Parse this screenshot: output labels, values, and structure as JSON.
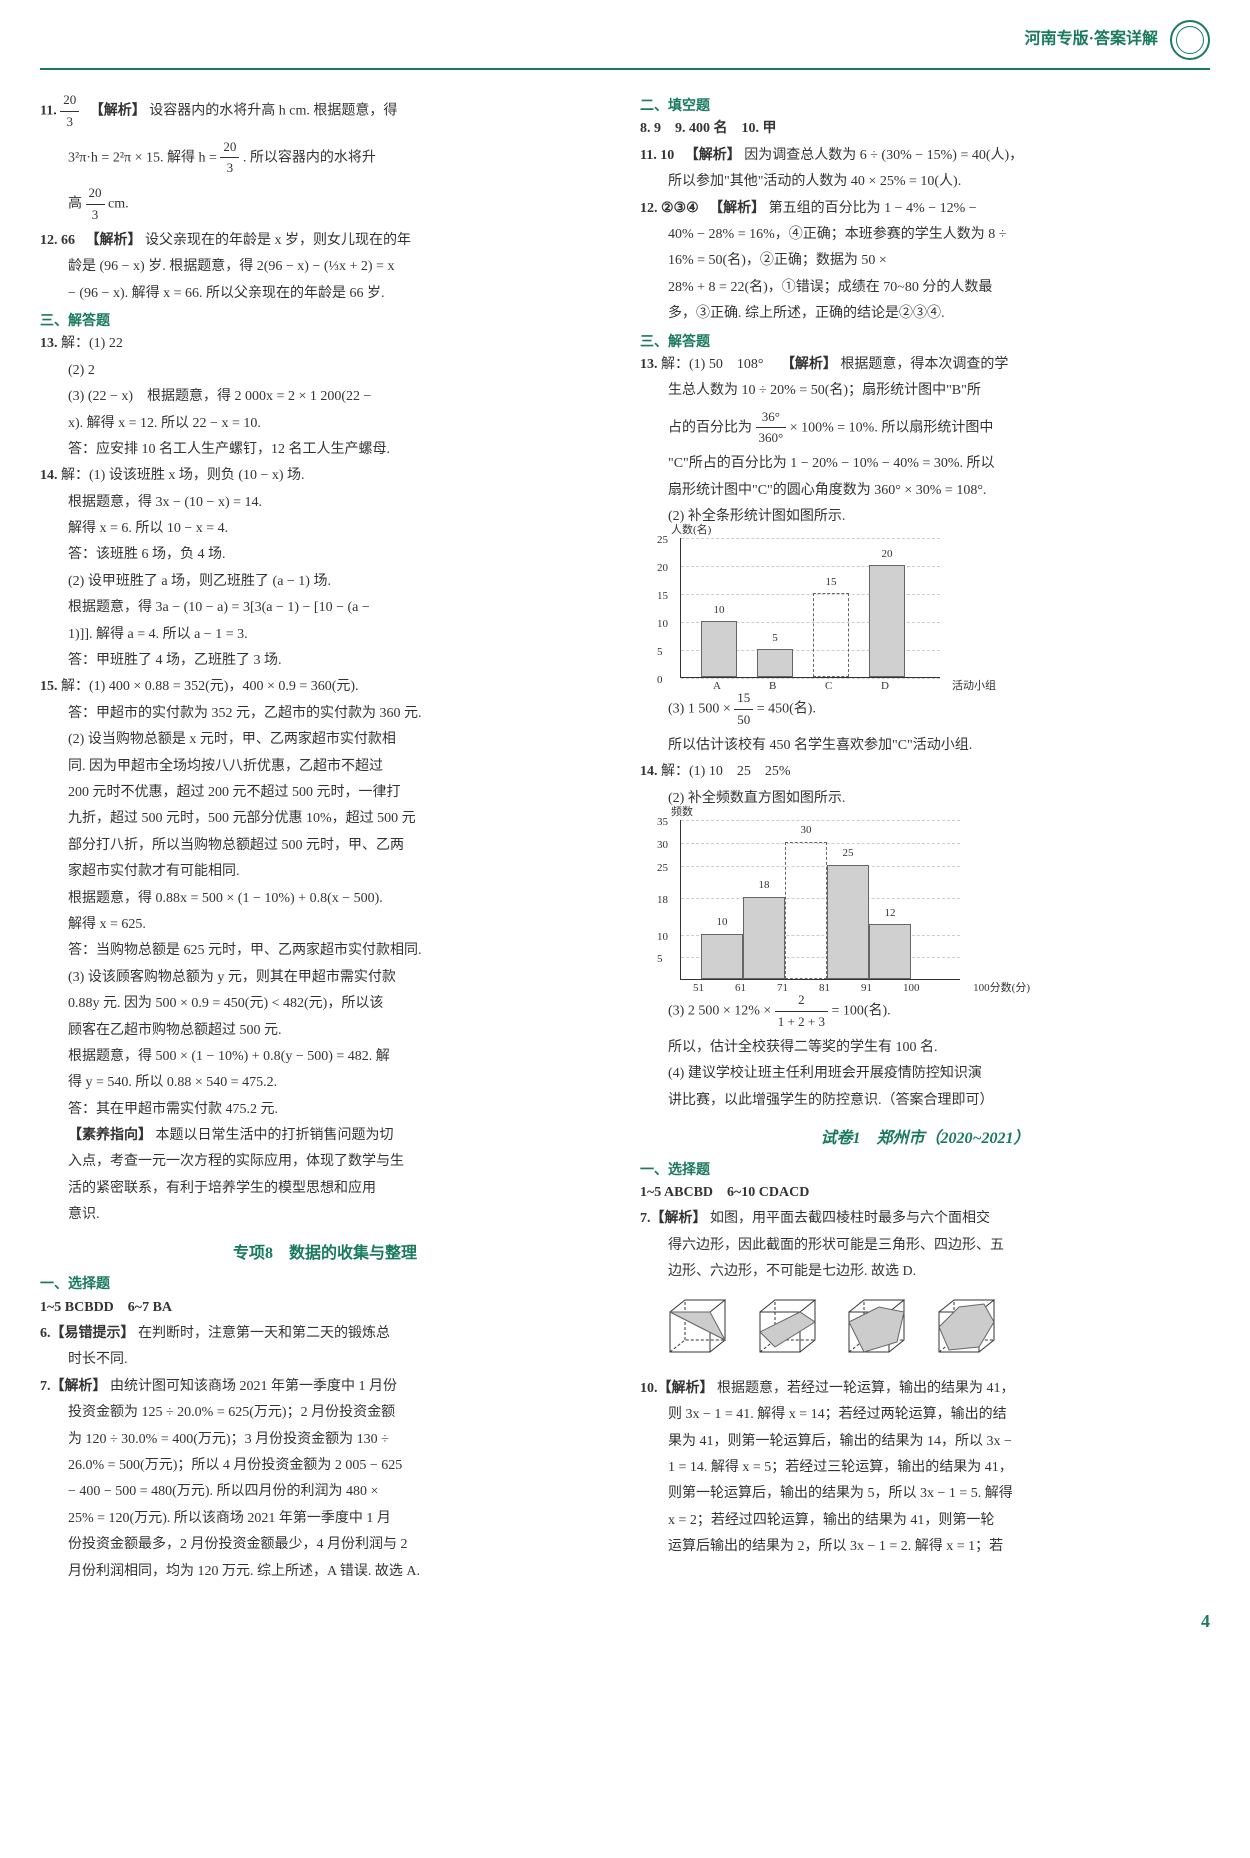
{
  "header": {
    "text": "河南专版·答案详解"
  },
  "left": {
    "q11_num": "11.",
    "q11_ans": "20/3",
    "q11_tag": "【解析】",
    "q11_l1": "设容器内的水将升高 h cm. 根据题意，得",
    "q11_l2": "3²π·h = 2²π × 15. 解得 h = ",
    "q11_l2b": ". 所以容器内的水将升",
    "q11_l3a": "高",
    "q11_l3b": " cm.",
    "q12_num": "12. 66",
    "q12_tag": "【解析】",
    "q12_l1": "设父亲现在的年龄是 x 岁，则女儿现在的年",
    "q12_l2": "龄是 (96 − x) 岁. 根据题意，得 2(96 − x) − (⅓x + 2) = x",
    "q12_l3": "− (96 − x). 解得 x = 66. 所以父亲现在的年龄是 66 岁.",
    "sec3": "三、解答题",
    "q13_num": "13.",
    "q13_l1": "解：(1) 22",
    "q13_l2": "(2) 2",
    "q13_l3": "(3) (22 − x)　根据题意，得 2 000x = 2 × 1 200(22 −",
    "q13_l4": "x). 解得 x = 12. 所以 22 − x = 10.",
    "q13_l5": "答：应安排 10 名工人生产螺钉，12 名工人生产螺母.",
    "q14_num": "14.",
    "q14_l1": "解：(1) 设该班胜 x 场，则负 (10 − x) 场.",
    "q14_l2": "根据题意，得 3x − (10 − x) = 14.",
    "q14_l3": "解得 x = 6. 所以 10 − x = 4.",
    "q14_l4": "答：该班胜 6 场，负 4 场.",
    "q14_l5": "(2) 设甲班胜了 a 场，则乙班胜了 (a − 1) 场.",
    "q14_l6": "根据题意，得 3a − (10 − a) = 3[3(a − 1) − [10 − (a −",
    "q14_l7": "1)]]. 解得 a = 4. 所以 a − 1 = 3.",
    "q14_l8": "答：甲班胜了 4 场，乙班胜了 3 场.",
    "q15_num": "15.",
    "q15_l1": "解：(1) 400 × 0.88 = 352(元)，400 × 0.9 = 360(元).",
    "q15_l2": "答：甲超市的实付款为 352 元，乙超市的实付款为 360 元.",
    "q15_l3": "(2) 设当购物总额是 x 元时，甲、乙两家超市实付款相",
    "q15_l4": "同. 因为甲超市全场均按八八折优惠，乙超市不超过",
    "q15_l5": "200 元时不优惠，超过 200 元不超过 500 元时，一律打",
    "q15_l6": "九折，超过 500 元时，500 元部分优惠 10%，超过 500 元",
    "q15_l7": "部分打八折，所以当购物总额超过 500 元时，甲、乙两",
    "q15_l8": "家超市实付款才有可能相同.",
    "q15_l9": "根据题意，得 0.88x = 500 × (1 − 10%) + 0.8(x − 500).",
    "q15_l10": "解得 x = 625.",
    "q15_l11": "答：当购物总额是 625 元时，甲、乙两家超市实付款相同.",
    "q15_l12": "(3) 设该顾客购物总额为 y 元，则其在甲超市需实付款",
    "q15_l13": "0.88y 元. 因为 500 × 0.9 = 450(元) < 482(元)，所以该",
    "q15_l14": "顾客在乙超市购物总额超过 500 元.",
    "q15_l15": "根据题意，得 500 × (1 − 10%) + 0.8(y − 500) = 482. 解",
    "q15_l16": "得 y = 540. 所以 0.88 × 540 = 475.2.",
    "q15_l17": "答：其在甲超市需实付款 475.2 元.",
    "q15_tag": "【素养指向】",
    "q15_l18": "本题以日常生活中的打折销售问题为切",
    "q15_l19": "入点，考查一元一次方程的实际应用，体现了数学与生",
    "q15_l20": "活的紧密联系，有利于培养学生的模型思想和应用",
    "q15_l21": "意识.",
    "topic8": "专项8　数据的收集与整理",
    "sec1b": "一、选择题",
    "ans1_5": "1~5 BCBDD　6~7 BA",
    "q6_tag": "6.【易错提示】",
    "q6_l1": "在判断时，注意第一天和第二天的锻炼总",
    "q6_l2": "时长不同.",
    "q7_tag": "7.【解析】",
    "q7_l1": "由统计图可知该商场 2021 年第一季度中 1 月份",
    "q7_l2": "投资金额为 125 ÷ 20.0% = 625(万元)；2 月份投资金额",
    "q7_l3": "为 120 ÷ 30.0% = 400(万元)；3 月份投资金额为 130 ÷",
    "q7_l4": "26.0% = 500(万元)；所以 4 月份投资金额为 2 005 − 625",
    "q7_l5": "− 400 − 500 = 480(万元). 所以四月份的利润为 480 ×",
    "q7_l6": "25% = 120(万元). 所以该商场 2021 年第一季度中 1 月",
    "q7_l7": "份投资金额最多，2 月份投资金额最少，4 月份利润与 2",
    "q7_l8": "月份利润相同，均为 120 万元. 综上所述，A 错误. 故选 A."
  },
  "right": {
    "sec2": "二、填空题",
    "fill": "8. 9　9. 400 名　10. 甲",
    "q11_num": "11. 10",
    "q11_tag": "【解析】",
    "q11_l1": "因为调查总人数为 6 ÷ (30% − 15%) = 40(人)，",
    "q11_l2": "所以参加\"其他\"活动的人数为 40 × 25% = 10(人).",
    "q12_num": "12. ②③④",
    "q12_tag": "【解析】",
    "q12_l1": "第五组的百分比为 1 − 4% − 12% −",
    "q12_l2": "40% − 28% = 16%，④正确；本班参赛的学生人数为 8 ÷",
    "q12_l3": "16% = 50(名)，②正确；数据为 50 ×",
    "q12_l4": "28% + 8 = 22(名)，①错误；成绩在 70~80 分的人数最",
    "q12_l5": "多，③正确. 综上所述，正确的结论是②③④.",
    "sec3": "三、解答题",
    "q13_num": "13.",
    "q13_l1": "解：(1) 50　108°　",
    "q13_tag": "【解析】",
    "q13_l1b": "根据题意，得本次调查的学",
    "q13_l2": "生总人数为 10 ÷ 20% = 50(名)；扇形统计图中\"B\"所",
    "q13_l3a": "占的百分比为 ",
    "q13_l3b": " × 100% = 10%. 所以扇形统计图中",
    "q13_l4": "\"C\"所占的百分比为 1 − 20% − 10% − 40% = 30%. 所以",
    "q13_l5": "扇形统计图中\"C\"的圆心角度数为 360° × 30% = 108°.",
    "q13_l6": "(2) 补全条形统计图如图所示.",
    "q13_l7a": "(3) 1 500 × ",
    "q13_l7b": " = 450(名).",
    "q13_l8": "所以估计该校有 450 名学生喜欢参加\"C\"活动小组.",
    "q14_num": "14.",
    "q14_l1": "解：(1) 10　25　25%",
    "q14_l2": "(2) 补全频数直方图如图所示.",
    "q14_l3a": "(3) 2 500 × 12% × ",
    "q14_l3b": " = 100(名).",
    "q14_l4": "所以，估计全校获得二等奖的学生有 100 名.",
    "q14_l5": "(4) 建议学校让班主任利用班会开展疫情防控知识演",
    "q14_l6": "讲比赛，以此增强学生的防控意识.（答案合理即可）",
    "exam": "试卷1　郑州市（2020~2021）",
    "sec1b": "一、选择题",
    "ans1_10": "1~5 ABCBD　6~10 CDACD",
    "q7b_tag": "7.【解析】",
    "q7b_l1": "如图，用平面去截四棱柱时最多与六个面相交",
    "q7b_l2": "得六边形，因此截面的形状可能是三角形、四边形、五",
    "q7b_l3": "边形、六边形，不可能是七边形. 故选 D.",
    "q10_tag": "10.【解析】",
    "q10_l1": "根据题意，若经过一轮运算，输出的结果为 41，",
    "q10_l2": "则 3x − 1 = 41. 解得 x = 14；若经过两轮运算，输出的结",
    "q10_l3": "果为 41，则第一轮运算后，输出的结果为 14，所以 3x −",
    "q10_l4": "1 = 14. 解得 x = 5；若经过三轮运算，输出的结果为 41，",
    "q10_l5": "则第一轮运算后，输出的结果为 5，所以 3x − 1 = 5. 解得",
    "q10_l6": "x = 2；若经过四轮运算，输出的结果为 41，则第一轮",
    "q10_l7": "运算后输出的结果为 2，所以 3x − 1 = 2. 解得 x = 1；若"
  },
  "chart1": {
    "type": "bar",
    "ylabel_text": "人数(名)",
    "xlabel_text": "活动小组",
    "categories": [
      "A",
      "B",
      "C",
      "D"
    ],
    "values": [
      10,
      5,
      15,
      20
    ],
    "dashed_index": 2,
    "ylim": [
      0,
      25
    ],
    "ytick_step": 5,
    "bar_color": "#d0d0d0",
    "border_color": "#666666",
    "background_color": "#ffffff"
  },
  "chart2": {
    "type": "histogram",
    "ylabel_text": "频数",
    "xlabel_text": "100分数(分)",
    "x_edges": [
      51,
      61,
      71,
      81,
      91,
      100
    ],
    "values": [
      10,
      18,
      30,
      25,
      12
    ],
    "dashed_index": 2,
    "ylim": [
      0,
      35
    ],
    "yticks": [
      5,
      10,
      18,
      25,
      30,
      35
    ],
    "bar_color": "#d0d0d0",
    "border_color": "#666666",
    "background_color": "#ffffff"
  },
  "page_num": "4"
}
